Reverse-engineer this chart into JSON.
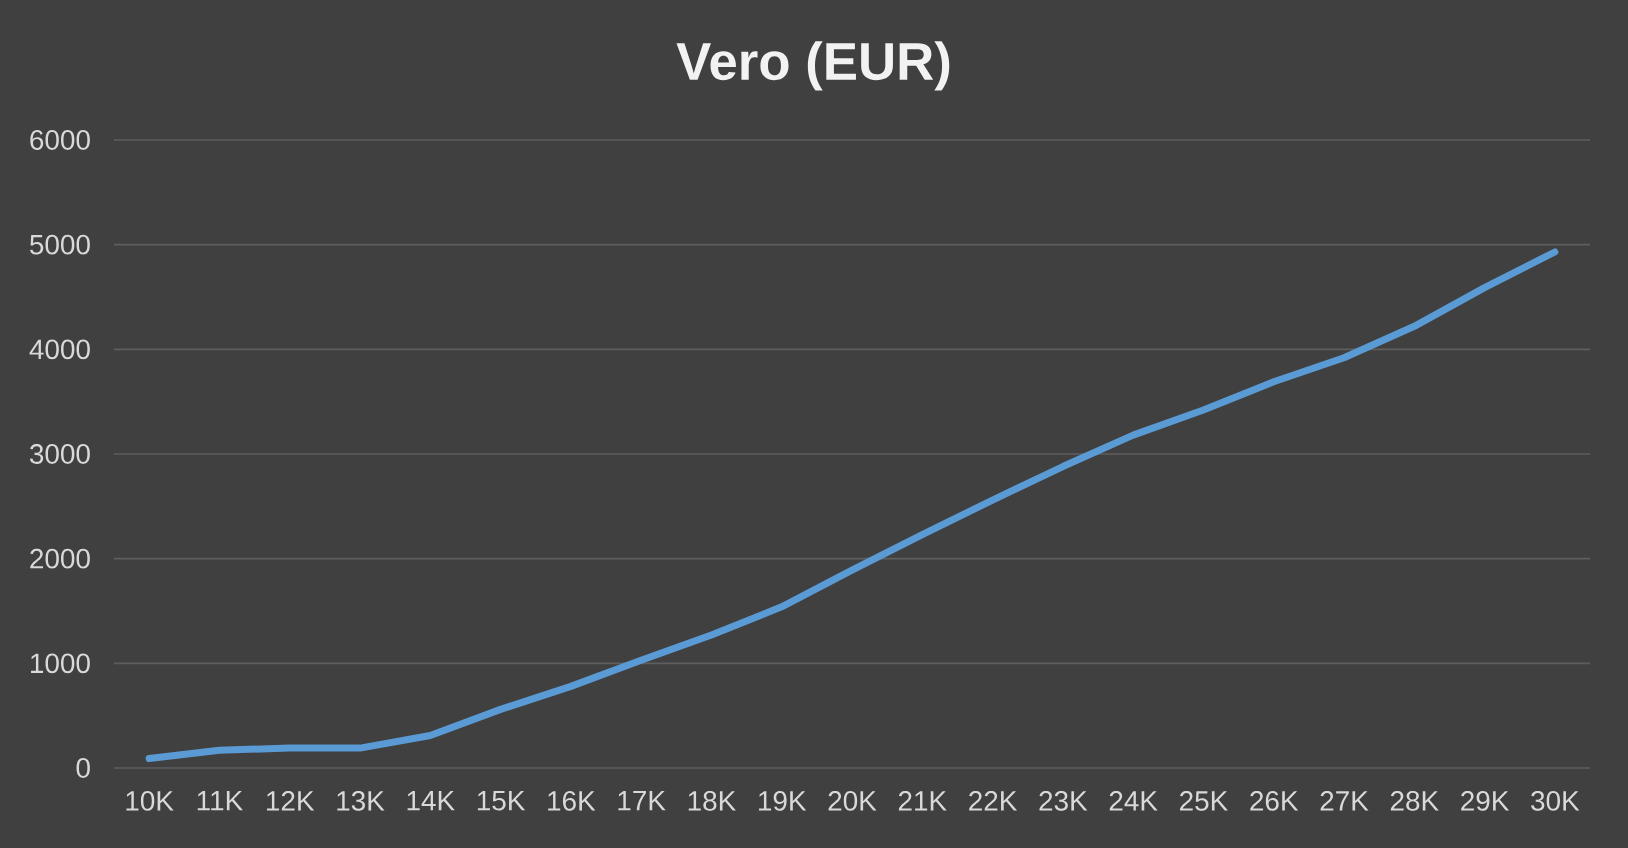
{
  "chart_data": {
    "type": "line",
    "title": "Vero (EUR)",
    "categories": [
      "10K",
      "11K",
      "12K",
      "13K",
      "14K",
      "15K",
      "16K",
      "17K",
      "18K",
      "19K",
      "20K",
      "21K",
      "22K",
      "23K",
      "24K",
      "25K",
      "26K",
      "27K",
      "28K",
      "29K",
      "30K"
    ],
    "series": [
      {
        "color": "#5b9bd5",
        "values": [
          90,
          170,
          190,
          190,
          310,
          560,
          780,
          1030,
          1270,
          1540,
          1890,
          2230,
          2560,
          2880,
          3180,
          3420,
          3690,
          3920,
          4220,
          4590,
          4930
        ]
      }
    ],
    "ylim": [
      0,
      6000
    ],
    "yticks": [
      0,
      1000,
      2000,
      3000,
      4000,
      5000,
      6000
    ],
    "grid": "y"
  }
}
